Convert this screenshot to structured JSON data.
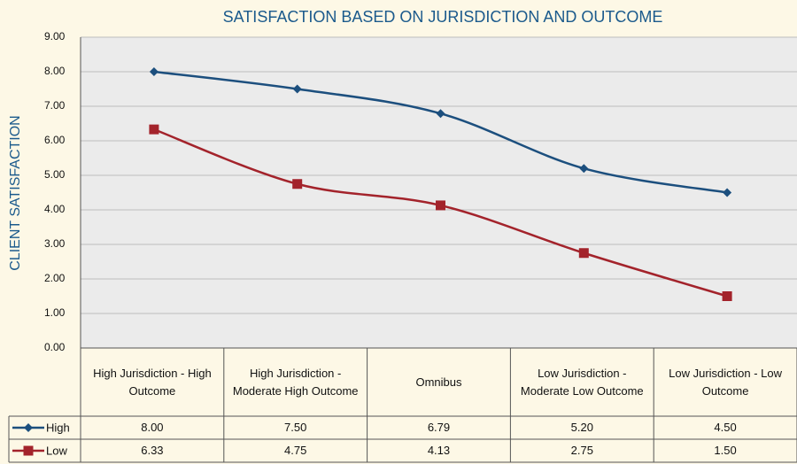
{
  "chart_data": {
    "type": "line",
    "title": "SATISFACTION BASED ON JURISDICTION AND OUTCOME",
    "y_label": "CLIENT SATISFACTION",
    "categories": [
      "High Jurisdiction - High Outcome",
      "High Jurisdiction - Moderate High Outcome",
      "Omnibus",
      "Low Jurisdiction - Moderate Low Outcome",
      "Low Jurisdiction - Low Outcome"
    ],
    "series": [
      {
        "name": "High",
        "color": "#1c4f7e",
        "marker": "diamond",
        "values": [
          8,
          7.5,
          6.79,
          5.2,
          4.5
        ],
        "value_labels": [
          "8.00",
          "7.50",
          "6.79",
          "5.20",
          "4.50"
        ]
      },
      {
        "name": "Low",
        "color": "#a3232b",
        "marker": "square",
        "values": [
          6.33,
          4.75,
          4.13,
          2.75,
          1.5
        ],
        "value_labels": [
          "6.33",
          "4.75",
          "4.13",
          "2.75",
          "1.50"
        ]
      }
    ],
    "ylim": [
      0,
      9
    ],
    "yticks": [
      {
        "value": 0,
        "label": "0.00"
      },
      {
        "value": 1,
        "label": "1.00"
      },
      {
        "value": 2,
        "label": "2.00"
      },
      {
        "value": 3,
        "label": "3.00"
      },
      {
        "value": 4,
        "label": "4.00"
      },
      {
        "value": 5,
        "label": "5.00"
      },
      {
        "value": 6,
        "label": "6.00"
      },
      {
        "value": 7,
        "label": "7.00"
      },
      {
        "value": 8,
        "label": "8.00"
      },
      {
        "value": 9,
        "label": "9.00"
      }
    ],
    "grid": true,
    "smooth": true
  }
}
